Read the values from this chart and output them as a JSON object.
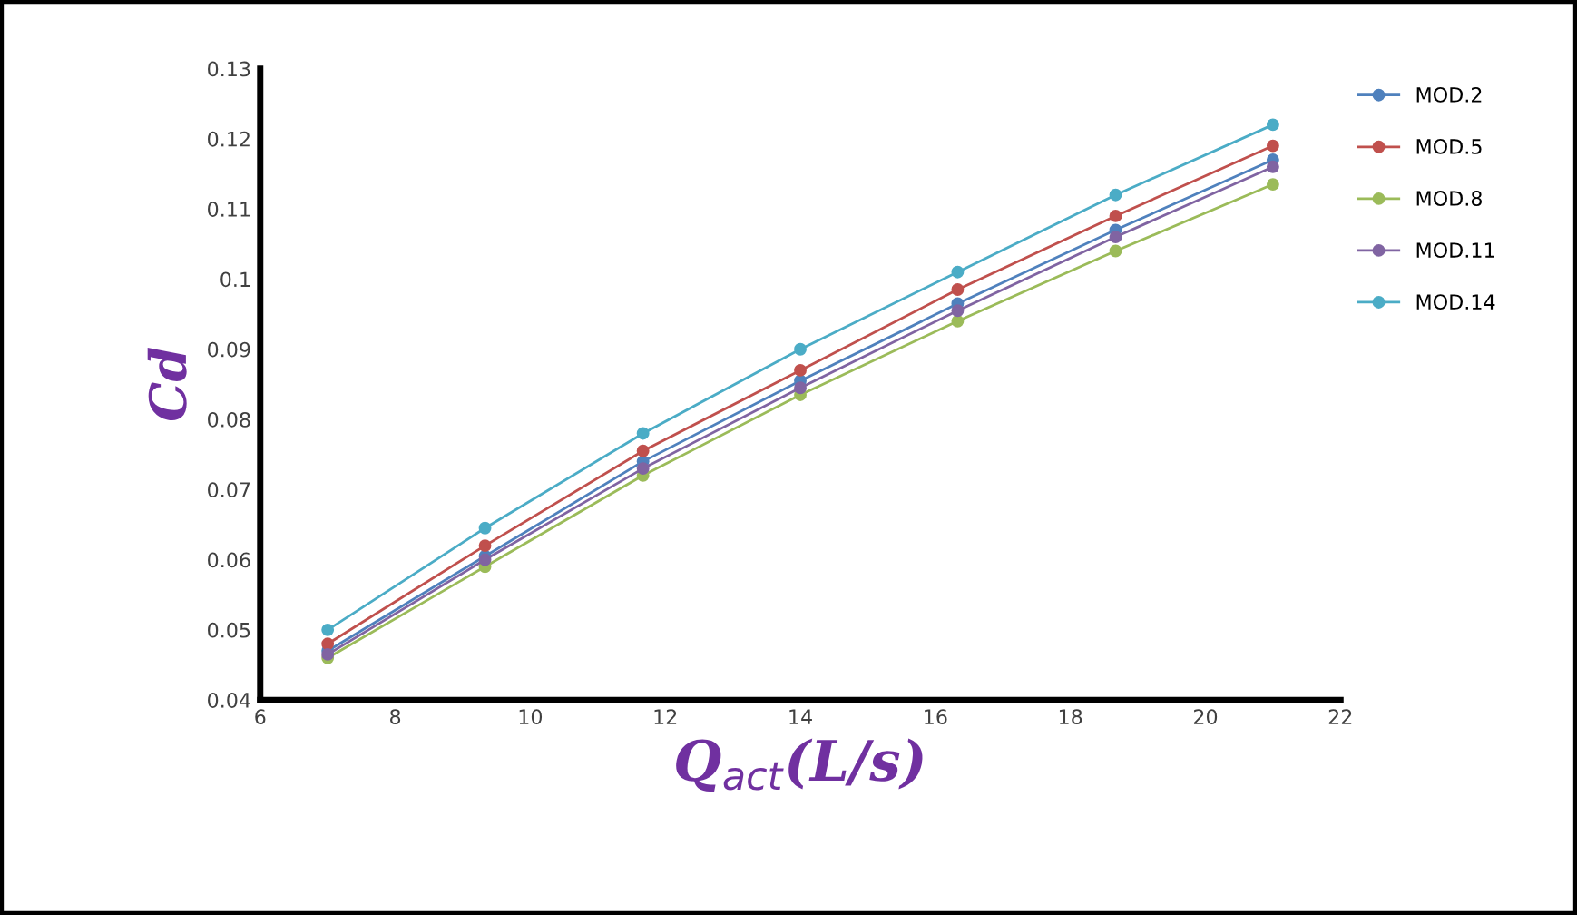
{
  "chart_data": {
    "type": "line",
    "xlabel": "Q$_{act}$(L/s)",
    "ylabel": "Cd",
    "x": [
      7,
      9.33,
      11.67,
      14,
      16.33,
      18.67,
      21
    ],
    "series": [
      {
        "name": "MOD.2",
        "color": "#4f81bd",
        "values": [
          0.047,
          0.0605,
          0.074,
          0.0855,
          0.0965,
          0.107,
          0.117
        ]
      },
      {
        "name": "MOD.5",
        "color": "#c0504d",
        "values": [
          0.048,
          0.062,
          0.0755,
          0.087,
          0.0985,
          0.109,
          0.119
        ]
      },
      {
        "name": "MOD.8",
        "color": "#9bbb59",
        "values": [
          0.046,
          0.059,
          0.072,
          0.0835,
          0.094,
          0.104,
          0.1135
        ]
      },
      {
        "name": "MOD.11",
        "color": "#8064a2",
        "values": [
          0.0465,
          0.06,
          0.073,
          0.0845,
          0.0955,
          0.106,
          0.116
        ]
      },
      {
        "name": "MOD.14",
        "color": "#4bacc6",
        "values": [
          0.05,
          0.0645,
          0.078,
          0.09,
          0.101,
          0.112,
          0.122
        ]
      }
    ],
    "xlim": [
      6,
      22
    ],
    "xticks": [
      6,
      8,
      10,
      12,
      14,
      16,
      18,
      20,
      22
    ],
    "ylim": [
      0.04,
      0.13
    ],
    "yticks": [
      0.04,
      0.05,
      0.06,
      0.07,
      0.08,
      0.09,
      0.1,
      0.11,
      0.12,
      0.13
    ],
    "grid": false,
    "legend": "right",
    "marker": "circle",
    "line_style": "solid"
  }
}
